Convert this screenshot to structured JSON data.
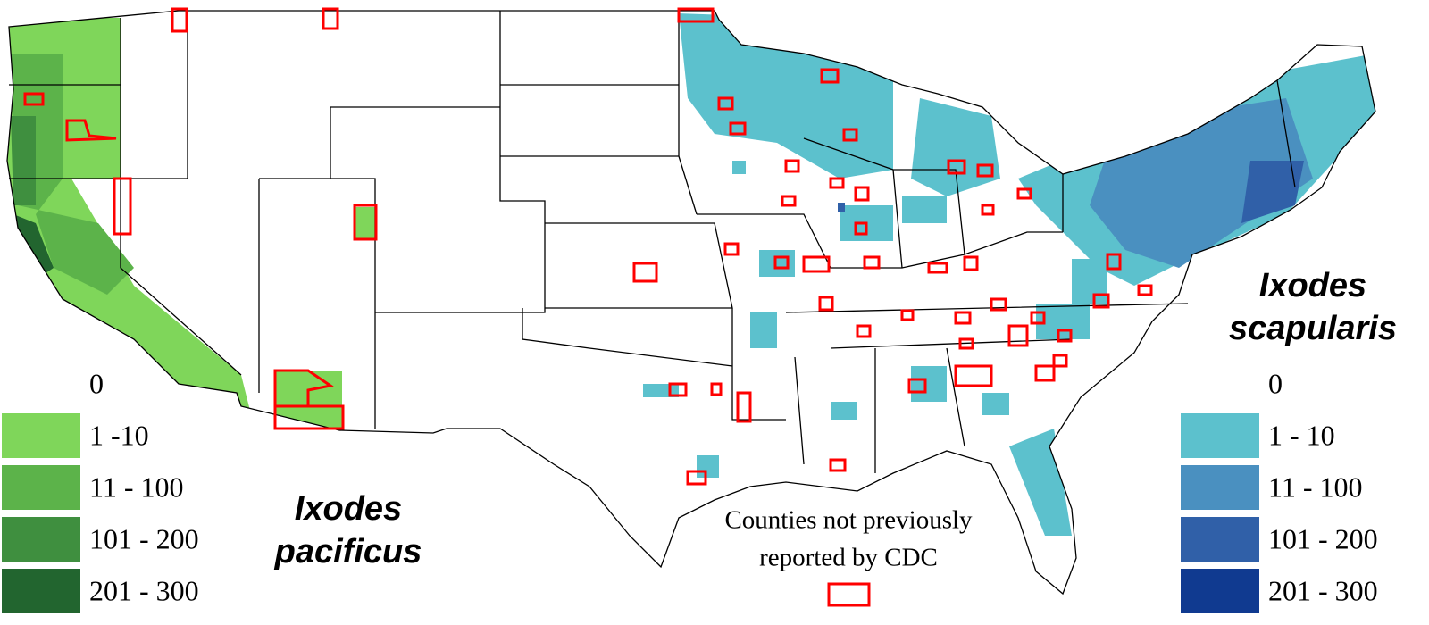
{
  "legends": [
    {
      "title": [
        "Ixodes",
        "pacificus"
      ],
      "bins": [
        {
          "label": "0",
          "color": "#ffffff"
        },
        {
          "label": "1 -10",
          "color": "#7fd65a"
        },
        {
          "label": "11 - 100",
          "color": "#5cb34a"
        },
        {
          "label": "101 - 200",
          "color": "#3f8f3f"
        },
        {
          "label": "201 - 300",
          "color": "#22652f"
        }
      ]
    },
    {
      "title": [
        "Ixodes",
        "scapularis"
      ],
      "bins": [
        {
          "label": "0",
          "color": "#ffffff"
        },
        {
          "label": "1 - 10",
          "color": "#5cc1cd"
        },
        {
          "label": "11 - 100",
          "color": "#4a90c0"
        },
        {
          "label": "101 - 200",
          "color": "#3060a8"
        },
        {
          "label": "201 - 300",
          "color": "#103a90"
        }
      ]
    }
  ],
  "note": {
    "lines": [
      "Counties not previously",
      "reported by CDC"
    ],
    "color": "#ff0000"
  }
}
